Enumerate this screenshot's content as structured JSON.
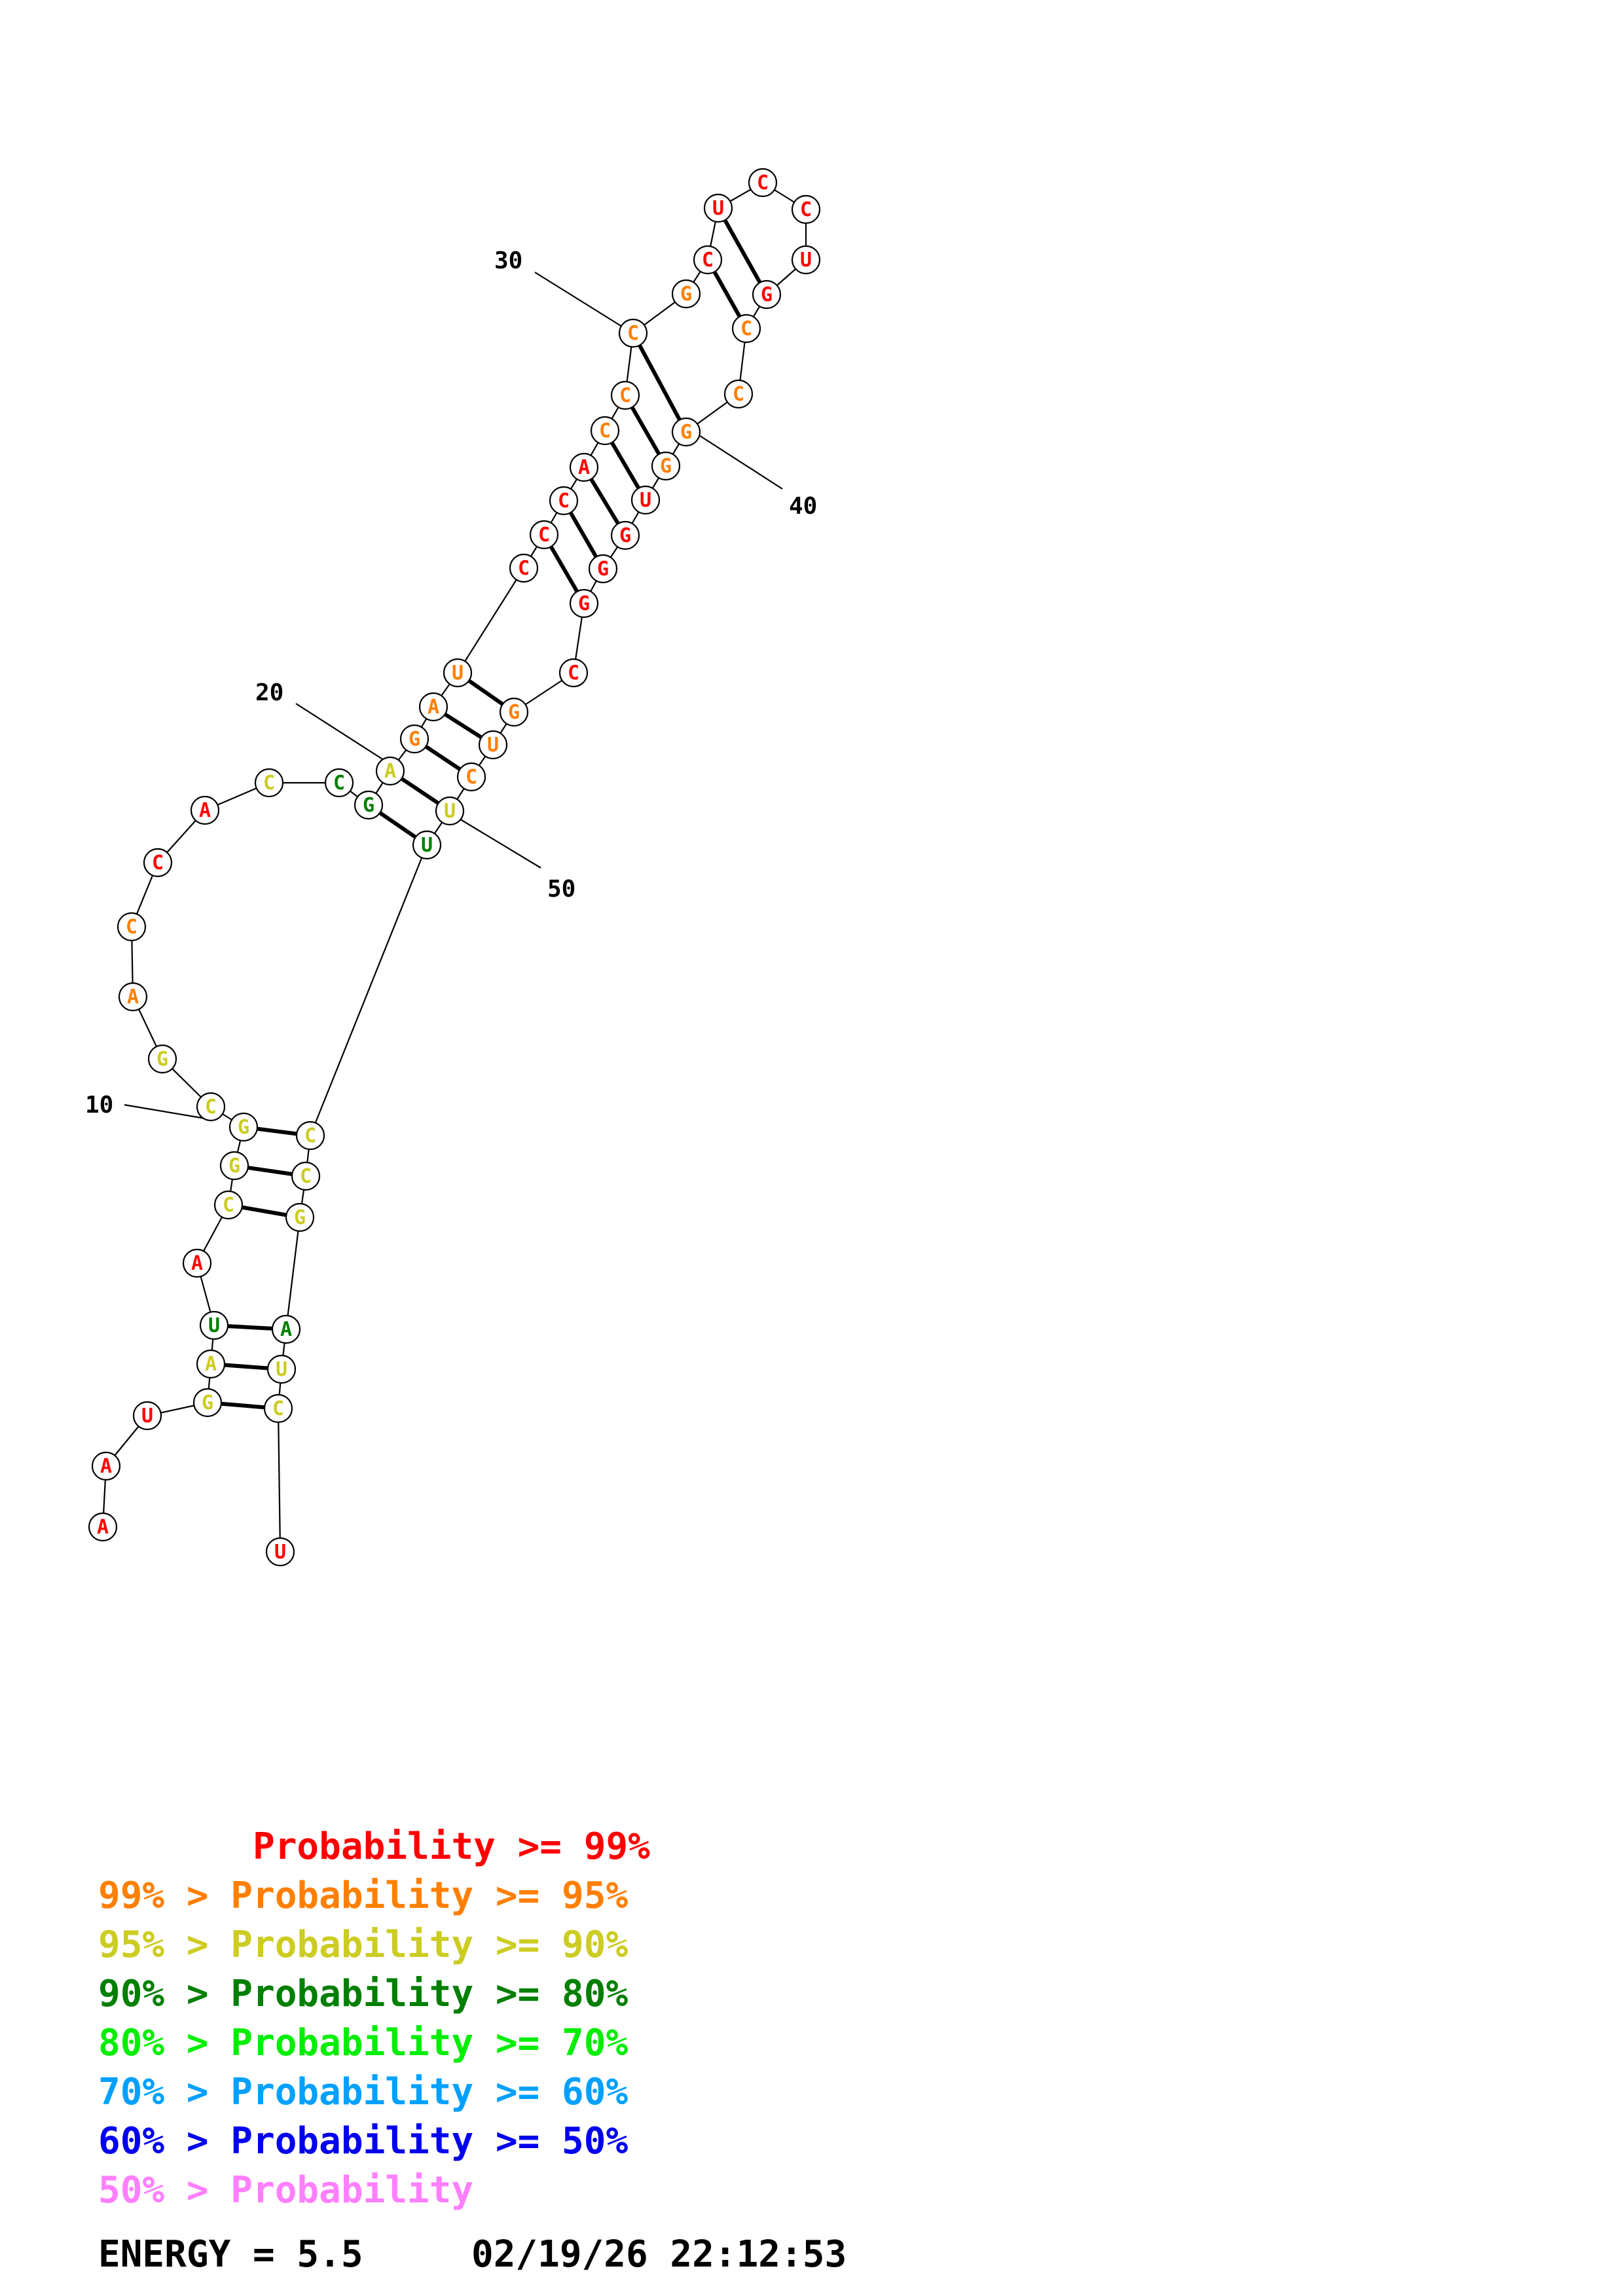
{
  "colors": {
    "p99": "#ff0000",
    "p95": "#ff7f00",
    "p90": "#cccc22",
    "p80": "#007f00",
    "p70": "#00ee00",
    "p60": "#00a0ff",
    "p50": "#0000ee",
    "plow": "#ff7fff"
  },
  "nucleotides": [
    {
      "i": 1,
      "b": "A",
      "p": "p99"
    },
    {
      "i": 2,
      "b": "A",
      "p": "p99"
    },
    {
      "i": 3,
      "b": "U",
      "p": "p99"
    },
    {
      "i": 4,
      "b": "G",
      "p": "p90"
    },
    {
      "i": 5,
      "b": "A",
      "p": "p90"
    },
    {
      "i": 6,
      "b": "U",
      "p": "p80"
    },
    {
      "i": 7,
      "b": "A",
      "p": "p99"
    },
    {
      "i": 8,
      "b": "C",
      "p": "p90"
    },
    {
      "i": 9,
      "b": "G",
      "p": "p90"
    },
    {
      "i": 10,
      "b": "G",
      "p": "p90"
    },
    {
      "i": 11,
      "b": "C",
      "p": "p90"
    },
    {
      "i": 12,
      "b": "G",
      "p": "p90"
    },
    {
      "i": 13,
      "b": "A",
      "p": "p95"
    },
    {
      "i": 14,
      "b": "C",
      "p": "p95"
    },
    {
      "i": 15,
      "b": "C",
      "p": "p99"
    },
    {
      "i": 16,
      "b": "A",
      "p": "p99"
    },
    {
      "i": 17,
      "b": "C",
      "p": "p90"
    },
    {
      "i": 18,
      "b": "C",
      "p": "p80"
    },
    {
      "i": 19,
      "b": "G",
      "p": "p80"
    },
    {
      "i": 20,
      "b": "A",
      "p": "p90"
    },
    {
      "i": 21,
      "b": "G",
      "p": "p95"
    },
    {
      "i": 22,
      "b": "A",
      "p": "p95"
    },
    {
      "i": 23,
      "b": "U",
      "p": "p95"
    },
    {
      "i": 24,
      "b": "C",
      "p": "p99"
    },
    {
      "i": 25,
      "b": "C",
      "p": "p99"
    },
    {
      "i": 26,
      "b": "C",
      "p": "p99"
    },
    {
      "i": 27,
      "b": "A",
      "p": "p99"
    },
    {
      "i": 28,
      "b": "C",
      "p": "p95"
    },
    {
      "i": 29,
      "b": "C",
      "p": "p95"
    },
    {
      "i": 30,
      "b": "C",
      "p": "p95"
    },
    {
      "i": 31,
      "b": "G",
      "p": "p95"
    },
    {
      "i": 32,
      "b": "C",
      "p": "p99"
    },
    {
      "i": 33,
      "b": "U",
      "p": "p99"
    },
    {
      "i": 34,
      "b": "C",
      "p": "p99"
    },
    {
      "i": 35,
      "b": "C",
      "p": "p99"
    },
    {
      "i": 36,
      "b": "U",
      "p": "p99"
    },
    {
      "i": 37,
      "b": "G",
      "p": "p99"
    },
    {
      "i": 38,
      "b": "C",
      "p": "p95"
    },
    {
      "i": 39,
      "b": "C",
      "p": "p95"
    },
    {
      "i": 40,
      "b": "G",
      "p": "p95"
    },
    {
      "i": 41,
      "b": "G",
      "p": "p95"
    },
    {
      "i": 42,
      "b": "U",
      "p": "p99"
    },
    {
      "i": 43,
      "b": "G",
      "p": "p99"
    },
    {
      "i": 44,
      "b": "G",
      "p": "p99"
    },
    {
      "i": 45,
      "b": "G",
      "p": "p99"
    },
    {
      "i": 46,
      "b": "C",
      "p": "p99"
    },
    {
      "i": 47,
      "b": "G",
      "p": "p95"
    },
    {
      "i": 48,
      "b": "U",
      "p": "p95"
    },
    {
      "i": 49,
      "b": "C",
      "p": "p95"
    },
    {
      "i": 50,
      "b": "U",
      "p": "p90"
    },
    {
      "i": 51,
      "b": "U",
      "p": "p80"
    },
    {
      "i": 52,
      "b": "C",
      "p": "p90"
    },
    {
      "i": 53,
      "b": "C",
      "p": "p90"
    },
    {
      "i": 54,
      "b": "G",
      "p": "p90"
    },
    {
      "i": 55,
      "b": "A",
      "p": "p80"
    },
    {
      "i": 56,
      "b": "U",
      "p": "p90"
    },
    {
      "i": 57,
      "b": "C",
      "p": "p90"
    },
    {
      "i": 58,
      "b": "U",
      "p": "p99"
    }
  ],
  "pairs": [
    [
      4,
      57
    ],
    [
      5,
      56
    ],
    [
      6,
      55
    ],
    [
      8,
      54
    ],
    [
      9,
      53
    ],
    [
      10,
      52
    ],
    [
      19,
      51
    ],
    [
      20,
      50
    ],
    [
      21,
      49
    ],
    [
      22,
      48
    ],
    [
      23,
      47
    ],
    [
      25,
      45
    ],
    [
      26,
      44
    ],
    [
      27,
      43
    ],
    [
      28,
      42
    ],
    [
      29,
      41
    ],
    [
      30,
      40
    ],
    [
      32,
      38
    ],
    [
      33,
      37
    ]
  ],
  "position_labels": [
    {
      "label": "10",
      "at": 10
    },
    {
      "label": "20",
      "at": 20
    },
    {
      "label": "30",
      "at": 30
    },
    {
      "label": "40",
      "at": 40
    },
    {
      "label": "50",
      "at": 50
    }
  ],
  "legend": [
    {
      "text": "       Probability >= 99%",
      "p": "p99"
    },
    {
      "text": "99% > Probability >= 95%",
      "p": "p95"
    },
    {
      "text": "95% > Probability >= 90%",
      "p": "p90"
    },
    {
      "text": "90% > Probability >= 80%",
      "p": "p80"
    },
    {
      "text": "80% > Probability >= 70%",
      "p": "p70"
    },
    {
      "text": "70% > Probability >= 60%",
      "p": "p60"
    },
    {
      "text": "60% > Probability >= 50%",
      "p": "p50"
    },
    {
      "text": "50% > Probability",
      "p": "plow"
    }
  ],
  "footer": {
    "energy": "ENERGY = 5.5",
    "timestamp": "02/19/26 22:12:53"
  }
}
